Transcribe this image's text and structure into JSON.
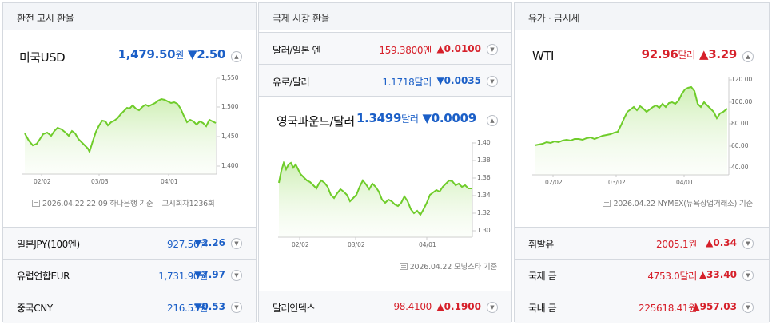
{
  "panel1": {
    "header": "환전 고시 환율",
    "main": {
      "name": "미국USD",
      "value": "1,479.50",
      "unit": "원",
      "change": "▼2.50"
    },
    "chart": {
      "y_ticks": [
        "1,550",
        "1,500",
        "1,450",
        "1,400"
      ],
      "x_ticks": [
        "02/02",
        "03/03",
        "04/01"
      ]
    },
    "caption": {
      "date": "2026.04.22 22:09",
      "source": "하나은행 기준",
      "round": "고시회차1236회"
    },
    "rows": [
      {
        "name": "일본JPY(100엔)",
        "value": "927.56",
        "unit": "원",
        "change": "▼2.26",
        "dir": "down"
      },
      {
        "name": "유럽연합EUR",
        "value": "1,731.90",
        "unit": "원",
        "change": "▼7.97",
        "dir": "down"
      },
      {
        "name": "중국CNY",
        "value": "216.53",
        "unit": "원",
        "change": "▼0.53",
        "dir": "down"
      }
    ]
  },
  "panel2": {
    "header": "국제 시장 환율",
    "top_rows": [
      {
        "name": "달러/일본 엔",
        "value": "159.3800",
        "unit": "엔",
        "change": "▲0.0100",
        "dir": "up"
      },
      {
        "name": "유로/달러",
        "value": "1.1718",
        "unit": "달러",
        "change": "▼0.0035",
        "dir": "down"
      }
    ],
    "main": {
      "name": "영국파운드/달러",
      "value": "1.3499",
      "unit": "달러",
      "change": "▼0.0009"
    },
    "chart": {
      "y_ticks": [
        "1.40",
        "1.38",
        "1.36",
        "1.34",
        "1.32",
        "1.30"
      ],
      "x_ticks": [
        "02/02",
        "03/02",
        "04/01"
      ]
    },
    "caption": {
      "date": "2026.04.22",
      "source": "모닝스타 기준"
    },
    "rows": [
      {
        "name": "달러인덱스",
        "value": "98.4100",
        "unit": "",
        "change": "▲0.1900",
        "dir": "up"
      }
    ]
  },
  "panel3": {
    "header": "유가 · 금시세",
    "main": {
      "name": "WTI",
      "value": "92.96",
      "unit": "달러",
      "change": "▲3.29"
    },
    "chart": {
      "y_ticks": [
        "120.00",
        "100.00",
        "80.00",
        "60.00",
        "40.00"
      ],
      "x_ticks": [
        "02/02",
        "03/02",
        "04/01"
      ]
    },
    "caption": {
      "date": "2026.04.22",
      "source": "NYMEX(뉴욕상업거래소) 기준"
    },
    "rows": [
      {
        "name": "휘발유",
        "value": "2005.1",
        "unit": "원",
        "change": "▲0.34",
        "dir": "up"
      },
      {
        "name": "국제 금",
        "value": "4753.0",
        "unit": "달러",
        "change": "▲33.40",
        "dir": "up"
      },
      {
        "name": "국내 금",
        "value": "225618.41",
        "unit": "원",
        "change": "▲957.03",
        "dir": "up"
      }
    ]
  },
  "colors": {
    "up": "#d6202a",
    "down": "#1b5fc7",
    "line": "#6fcc2a"
  }
}
